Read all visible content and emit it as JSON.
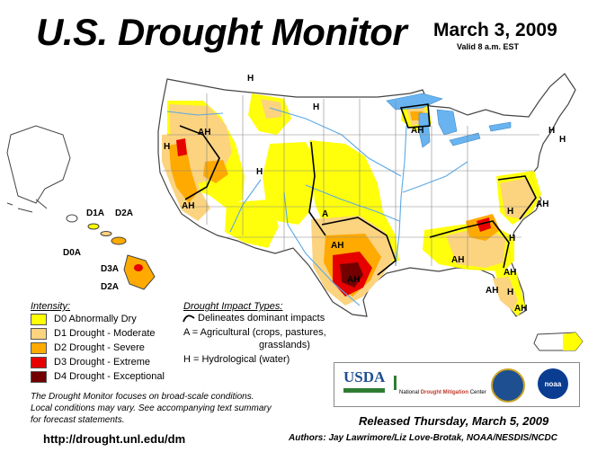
{
  "header": {
    "title": "U.S. Drought Monitor",
    "date": "March 3, 2009",
    "valid": "Valid 8 a.m. EST"
  },
  "colors": {
    "water": "#5aa9e6",
    "lake": "#69b4f0",
    "land": "#ffffff",
    "d0": "#ffff00",
    "d1": "#fcd37f",
    "d2": "#ffaa00",
    "d3": "#e60000",
    "d4": "#730000"
  },
  "map_labels": {
    "h_nw": "H",
    "h_north": "H",
    "h_mt": "H",
    "h_ca": "H",
    "ah_or": "AH",
    "ah_ca": "AH",
    "ah_mi": "AH",
    "h_ky": "H",
    "a_tx": "A",
    "ah_tx": "AH",
    "ah_tx2": "AH",
    "ah_se": "AH",
    "h_ga": "H",
    "ah_va": "AH",
    "h_va": "H",
    "ah_fl": "AH",
    "h_fl": "H",
    "ah_fl2": "AH",
    "ah_fl3": "AH",
    "h_me": "H"
  },
  "hawaii_labels": {
    "d1a": "D1A",
    "d2a_top": "D2A",
    "d0a": "D0A",
    "d3a": "D3A",
    "d2a_bottom": "D2A"
  },
  "legend": {
    "intensity_title": "Intensity:",
    "items": [
      {
        "label": "D0 Abnormally Dry",
        "color": "#ffff00"
      },
      {
        "label": "D1 Drought - Moderate",
        "color": "#fcd37f"
      },
      {
        "label": "D2 Drought - Severe",
        "color": "#ffaa00"
      },
      {
        "label": "D3 Drought - Extreme",
        "color": "#e60000"
      },
      {
        "label": "D4 Drought - Exceptional",
        "color": "#730000"
      }
    ]
  },
  "impacts": {
    "title": "Drought Impact Types:",
    "boundary_line": "Delineates dominant impacts",
    "agricultural_1": "A = Agricultural (crops, pastures,",
    "agricultural_2": "grasslands)",
    "hydrological": "H = Hydrological (water)"
  },
  "logos": {
    "usda": "USDA",
    "ndmc_1": "National",
    "ndmc_2": "Drought Mitigation",
    "ndmc_3": "Center",
    "noaa": "noaa"
  },
  "note": {
    "line1": "The Drought Monitor focuses on broad-scale conditions.",
    "line2": "Local conditions may vary. See accompanying text summary",
    "line3": "for forecast statements."
  },
  "footer": {
    "url": "http://drought.unl.edu/dm",
    "released": "Released Thursday, March 5, 2009",
    "authors": "Authors: Jay Lawrimore/Liz Love-Brotak, NOAA/NESDIS/NCDC"
  }
}
